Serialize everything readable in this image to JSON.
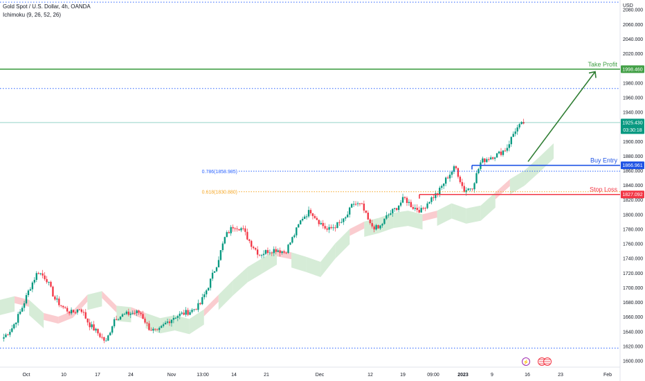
{
  "header": {
    "symbol_line": "Gold Spot / U.S. Dollar, 4h, OANDA",
    "indicator_line": "Ichimoku (9, 26, 52, 26)",
    "currency": "USD"
  },
  "chart_data": {
    "type": "candlestick",
    "y_ticks": [
      1600,
      1620,
      1640,
      1660,
      1680,
      1700,
      1720,
      1740,
      1760,
      1780,
      1800,
      1820,
      1840,
      1860,
      1880,
      1900,
      1920,
      1940,
      1960,
      1980,
      2000,
      2020,
      2040,
      2060,
      2080
    ],
    "ylim": [
      1591,
      2093
    ],
    "x_tick_labels": [
      "Oct",
      "10",
      "17",
      "24",
      "Nov",
      "13:00",
      "14",
      "21",
      "Dec",
      "12",
      "19",
      "09:00",
      "2023",
      "9",
      "16",
      "23",
      "Feb"
    ],
    "close_path": [
      1632,
      1645,
      1668,
      1698,
      1722,
      1712,
      1684,
      1672,
      1665,
      1672,
      1650,
      1638,
      1625,
      1658,
      1662,
      1665,
      1666,
      1645,
      1638,
      1651,
      1660,
      1664,
      1668,
      1676,
      1702,
      1732,
      1770,
      1785,
      1780,
      1760,
      1745,
      1750,
      1752,
      1748,
      1770,
      1795,
      1805,
      1790,
      1778,
      1785,
      1792,
      1815,
      1812,
      1785,
      1780,
      1798,
      1808,
      1822,
      1810,
      1805,
      1820,
      1830,
      1850,
      1865,
      1832,
      1838,
      1872,
      1878,
      1882,
      1890,
      1915,
      1925
    ],
    "cloud_path": [
      1683,
      1688,
      1683,
      1665,
      1660,
      1668,
      1690,
      1695,
      1675,
      1673,
      1665,
      1658,
      1662,
      1657,
      1670,
      1690,
      1710,
      1728,
      1740,
      1752,
      1748,
      1742,
      1735,
      1760,
      1780,
      1790,
      1795,
      1802,
      1805,
      1800,
      1805,
      1815,
      1808,
      1812,
      1830,
      1848,
      1860,
      1878,
      1897
    ],
    "price_labels": {
      "take_profit": "1998.460",
      "current": "1925.430",
      "countdown": "03:30:18",
      "buy_entry": "1866.961",
      "stop_loss": "1827.092"
    },
    "levels": [
      {
        "name": "take-profit",
        "value": 1998.46,
        "color": "#43a047",
        "label": "Take Profit",
        "price": "1998.460"
      },
      {
        "name": "buy-entry",
        "value": 1866.961,
        "color": "#1e53e5",
        "label": "Buy Entry",
        "price": "1866.961"
      },
      {
        "name": "stop-loss",
        "value": 1827.092,
        "color": "#f23645",
        "label": "Stop Loss",
        "price": "1827.092"
      }
    ],
    "dotted_levels": [
      2090,
      1972,
      1617
    ],
    "fib_levels": [
      {
        "value": 1858.985,
        "label": "0.786(1858.985)",
        "color": "#2962ff"
      },
      {
        "value": 1830.88,
        "label": "0.618(1830.880)",
        "color": "#f5a623"
      }
    ],
    "colors": {
      "up": "#089981",
      "down": "#f23645",
      "cloud_up": "#c8e6c9",
      "cloud_down": "#f8bbbf",
      "current": "#089981",
      "axis_text": "#131722"
    }
  }
}
